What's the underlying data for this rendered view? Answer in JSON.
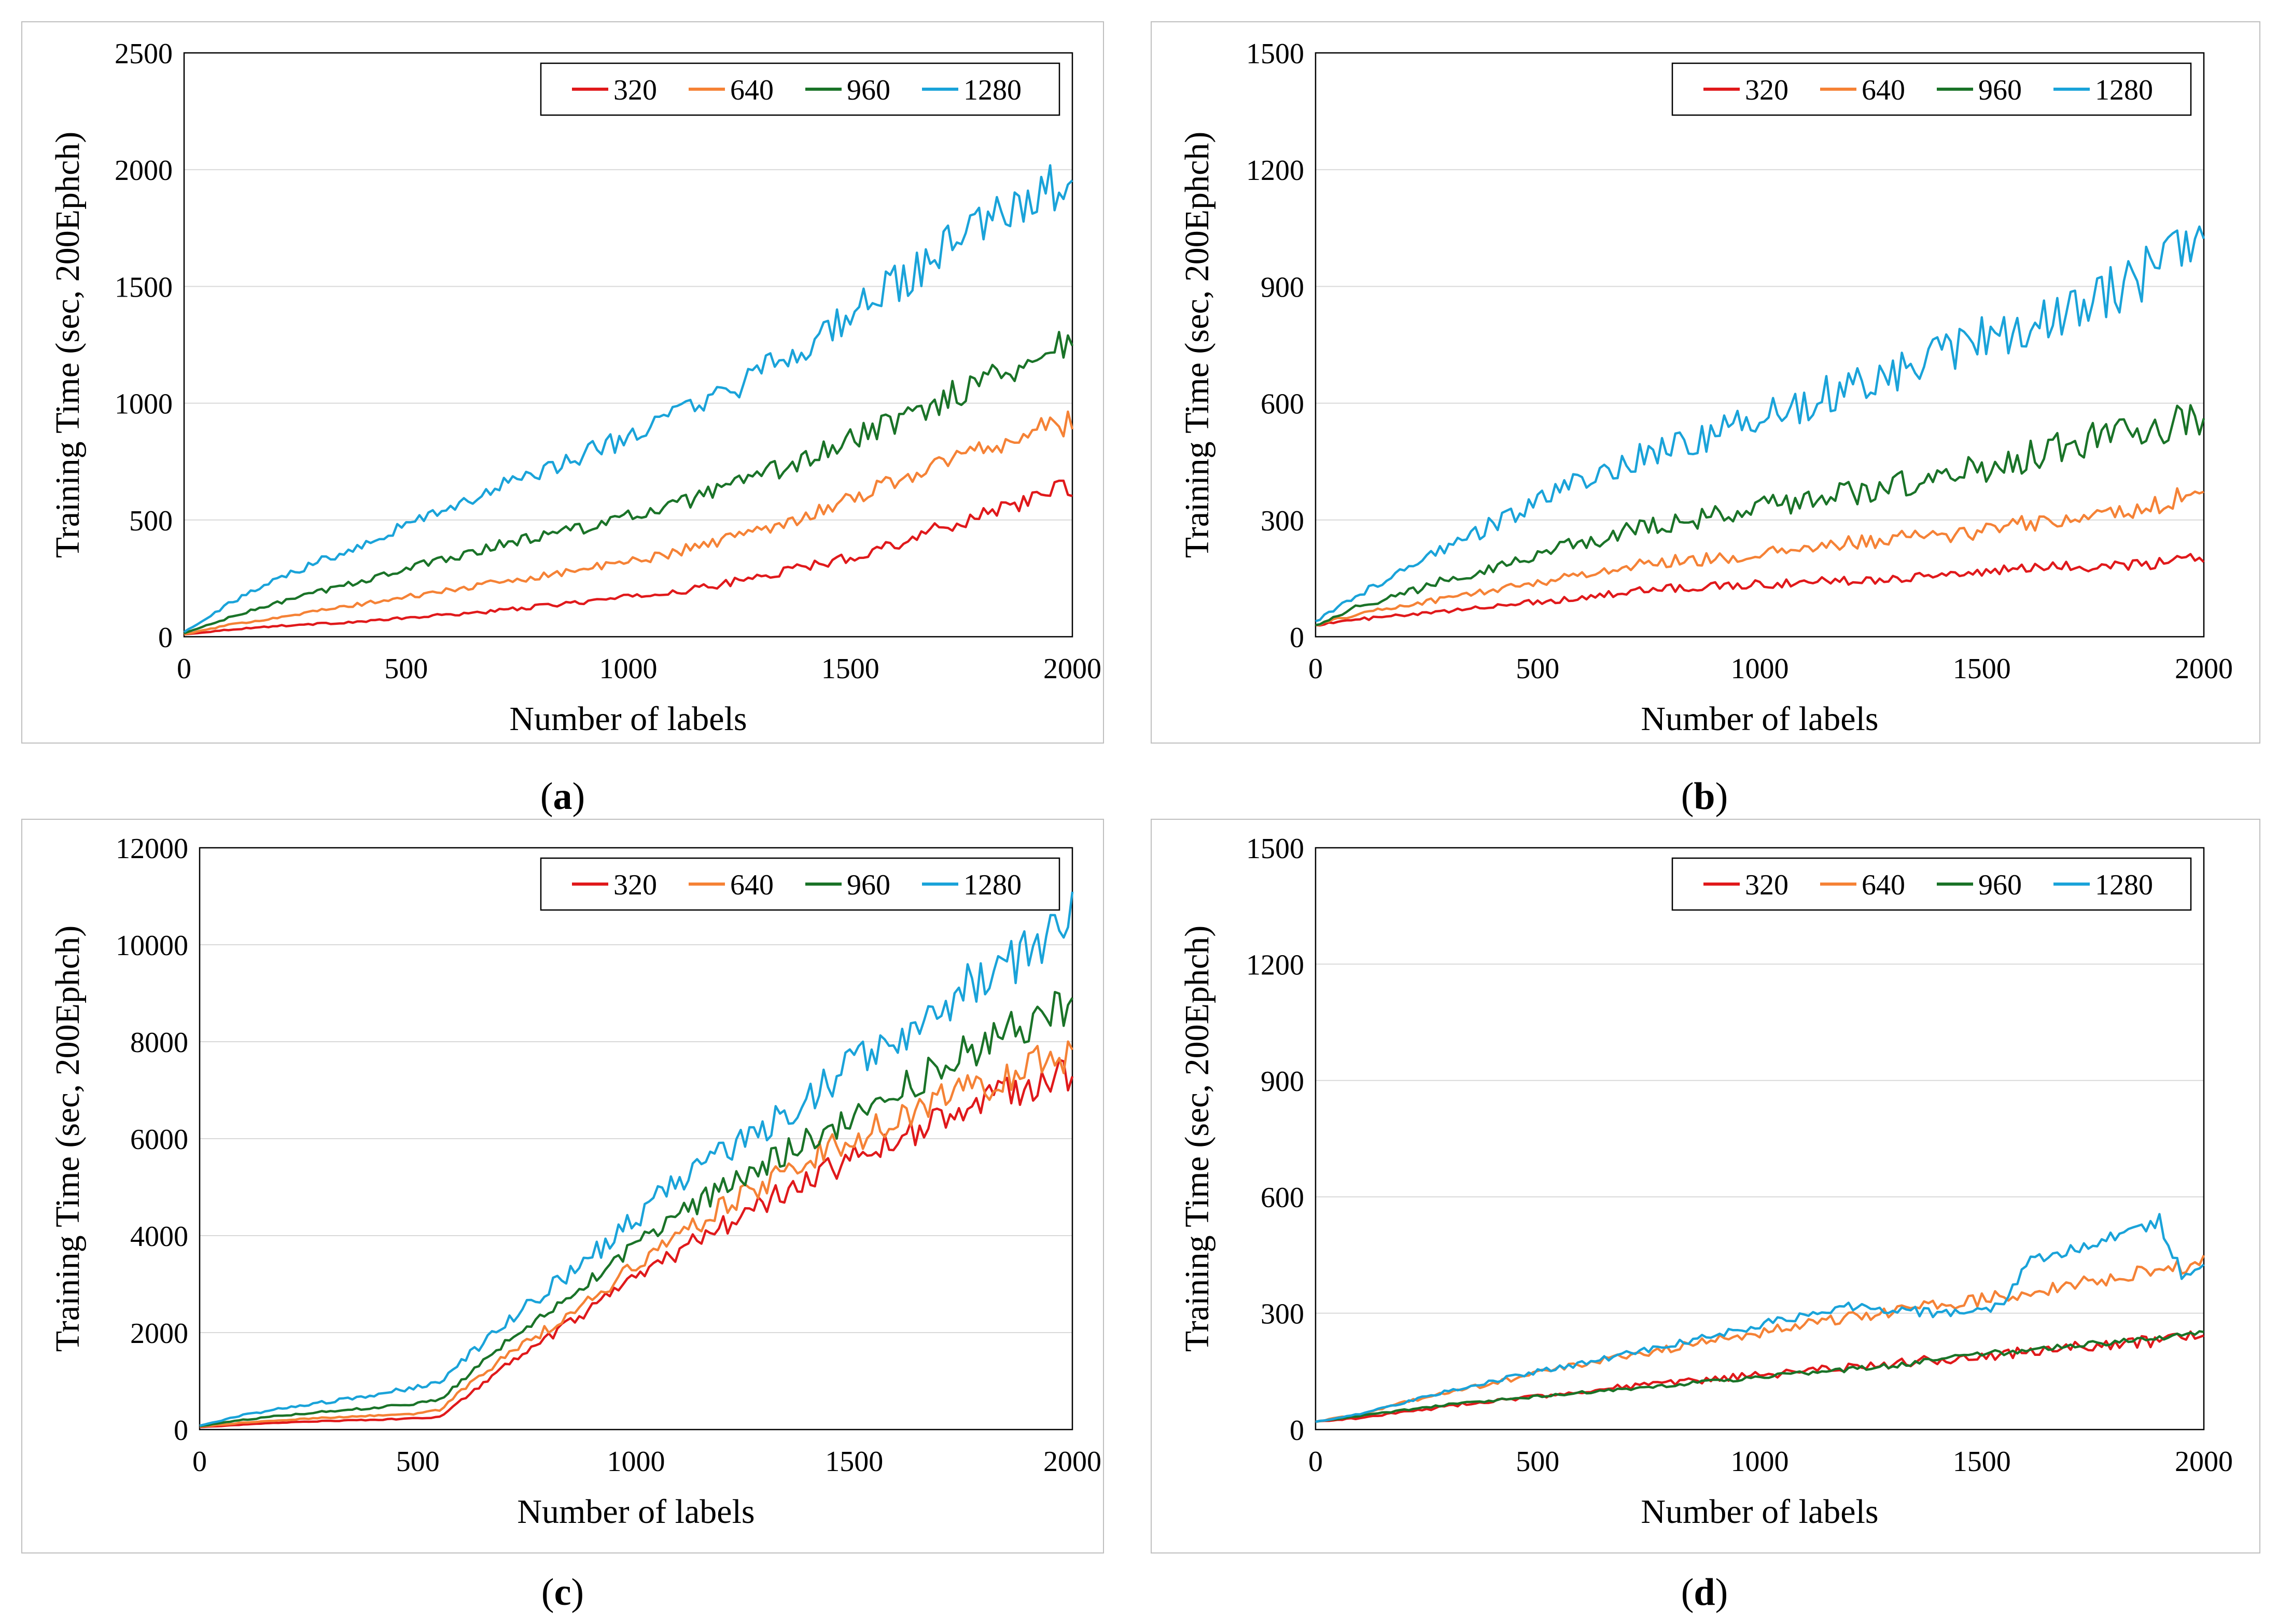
{
  "figure": {
    "panels": [
      "a",
      "b",
      "c",
      "d"
    ]
  },
  "colors": {
    "320": "#e0191b",
    "640": "#f58236",
    "960": "#1a7328",
    "1280": "#1aa3d9",
    "grid": "#d9d9d9",
    "frame": "#bfbfbf"
  },
  "chart_data": [
    {
      "id": "a",
      "caption_letter": "a",
      "caption_open": "(",
      "caption_close": ")",
      "type": "line",
      "xlabel": "Number of labels",
      "ylabel": "Training Time (sec, 200Ephch)",
      "xlim": [
        0,
        2000
      ],
      "ylim": [
        0,
        2500
      ],
      "xticks": [
        0,
        500,
        1000,
        1500,
        2000
      ],
      "yticks": [
        0,
        500,
        1000,
        1500,
        2000,
        2500
      ],
      "grid": true,
      "legend": "top-right",
      "x": [
        0,
        100,
        200,
        300,
        400,
        500,
        600,
        700,
        800,
        900,
        1000,
        1100,
        1200,
        1300,
        1400,
        1500,
        1600,
        1700,
        1800,
        1900,
        2000
      ],
      "series": [
        {
          "name": "320",
          "color_key": "320",
          "noise": 0.07,
          "values": [
            10,
            30,
            45,
            55,
            65,
            80,
            95,
            110,
            130,
            150,
            170,
            190,
            220,
            260,
            300,
            340,
            400,
            460,
            530,
            590,
            640
          ]
        },
        {
          "name": "640",
          "color_key": "640",
          "noise": 0.06,
          "values": [
            10,
            50,
            80,
            110,
            140,
            170,
            200,
            230,
            260,
            290,
            320,
            360,
            410,
            460,
            520,
            590,
            670,
            740,
            810,
            870,
            920
          ]
        },
        {
          "name": "960",
          "color_key": "960",
          "noise": 0.06,
          "values": [
            15,
            80,
            140,
            190,
            240,
            290,
            340,
            390,
            430,
            470,
            510,
            560,
            620,
            690,
            760,
            840,
            920,
            1010,
            1100,
            1180,
            1270
          ]
        },
        {
          "name": "1280",
          "color_key": "1280",
          "noise": 0.06,
          "values": [
            20,
            140,
            240,
            320,
            400,
            480,
            560,
            630,
            700,
            780,
            860,
            940,
            1020,
            1130,
            1250,
            1380,
            1500,
            1640,
            1760,
            1860,
            1960
          ]
        }
      ]
    },
    {
      "id": "b",
      "caption_letter": "b",
      "caption_open": "(",
      "caption_close": ")",
      "type": "line",
      "xlabel": "Number of labels",
      "ylabel": "Training Time (sec, 200Ephch)",
      "xlim": [
        0,
        2000
      ],
      "ylim": [
        0,
        1500
      ],
      "xticks": [
        0,
        500,
        1000,
        1500,
        2000
      ],
      "yticks": [
        0,
        300,
        600,
        900,
        1200,
        1500
      ],
      "grid": true,
      "legend": "top-right",
      "x": [
        0,
        100,
        200,
        300,
        400,
        500,
        600,
        700,
        800,
        900,
        1000,
        1100,
        1200,
        1300,
        1400,
        1500,
        1600,
        1700,
        1800,
        1900,
        2000
      ],
      "series": [
        {
          "name": "320",
          "color_key": "320",
          "noise": 0.08,
          "values": [
            30,
            45,
            55,
            65,
            80,
            90,
            100,
            115,
            125,
            130,
            135,
            140,
            145,
            150,
            160,
            165,
            175,
            180,
            185,
            190,
            200
          ]
        },
        {
          "name": "640",
          "color_key": "640",
          "noise": 0.08,
          "values": [
            30,
            60,
            80,
            100,
            120,
            140,
            160,
            180,
            195,
            200,
            210,
            225,
            240,
            250,
            260,
            270,
            290,
            300,
            320,
            340,
            380
          ]
        },
        {
          "name": "960",
          "color_key": "960",
          "noise": 0.09,
          "values": [
            30,
            80,
            110,
            150,
            180,
            210,
            240,
            270,
            290,
            310,
            330,
            350,
            370,
            390,
            410,
            430,
            460,
            490,
            520,
            540,
            560
          ]
        },
        {
          "name": "1280",
          "color_key": "1280",
          "noise": 0.08,
          "values": [
            40,
            110,
            170,
            230,
            290,
            350,
            400,
            450,
            490,
            520,
            560,
            600,
            640,
            680,
            720,
            760,
            800,
            850,
            900,
            950,
            1000
          ]
        }
      ]
    },
    {
      "id": "c",
      "caption_letter": "c",
      "caption_open": "(",
      "caption_close": ")",
      "type": "line",
      "xlabel": "Number of labels",
      "ylabel": "Training Time (sec, 200Ephch)",
      "xlim": [
        0,
        2000
      ],
      "ylim": [
        0,
        12000
      ],
      "xticks": [
        0,
        500,
        1000,
        1500,
        2000
      ],
      "yticks": [
        0,
        2000,
        4000,
        6000,
        8000,
        10000,
        12000
      ],
      "grid": true,
      "legend": "top-right",
      "x": [
        0,
        100,
        200,
        300,
        400,
        500,
        550,
        600,
        700,
        800,
        900,
        1000,
        1100,
        1200,
        1300,
        1400,
        1500,
        1600,
        1700,
        1800,
        1900,
        2000
      ],
      "series": [
        {
          "name": "320",
          "color_key": "320",
          "noise": 0.05,
          "values": [
            50,
            100,
            150,
            180,
            200,
            230,
            260,
            600,
            1300,
            1900,
            2500,
            3100,
            3700,
            4200,
            4700,
            5200,
            5600,
            6000,
            6400,
            6800,
            7100,
            7350
          ]
        },
        {
          "name": "640",
          "color_key": "640",
          "noise": 0.05,
          "values": [
            60,
            140,
            200,
            250,
            290,
            330,
            400,
            800,
            1500,
            2100,
            2700,
            3400,
            4000,
            4600,
            5100,
            5600,
            6000,
            6400,
            6800,
            7100,
            7500,
            7800
          ]
        },
        {
          "name": "960",
          "color_key": "960",
          "noise": 0.05,
          "values": [
            70,
            200,
            300,
            380,
            450,
            540,
            620,
            1000,
            1800,
            2500,
            3100,
            3800,
            4400,
            5000,
            5500,
            6000,
            6500,
            7000,
            7500,
            8000,
            8400,
            8750
          ]
        },
        {
          "name": "1280",
          "color_key": "1280",
          "noise": 0.06,
          "values": [
            80,
            300,
            450,
            580,
            720,
            880,
            1000,
            1400,
            2200,
            2900,
            3600,
            4400,
            5100,
            5700,
            6300,
            6900,
            7500,
            8100,
            8700,
            9300,
            9900,
            10700
          ]
        }
      ]
    },
    {
      "id": "d",
      "caption_letter": "d",
      "caption_open": "(",
      "caption_close": ")",
      "type": "line",
      "xlabel": "Number of labels",
      "ylabel": "Training Time (sec, 200Ephch)",
      "xlim": [
        0,
        2000
      ],
      "ylim": [
        0,
        1500
      ],
      "xticks": [
        0,
        500,
        1000,
        1500,
        2000
      ],
      "yticks": [
        0,
        300,
        600,
        900,
        1200,
        1500
      ],
      "grid": true,
      "legend": "top-right",
      "x": [
        0,
        100,
        200,
        300,
        400,
        500,
        600,
        700,
        800,
        900,
        1000,
        1100,
        1200,
        1300,
        1400,
        1500,
        1550,
        1600,
        1700,
        1800,
        1900,
        1950,
        2000
      ],
      "series": [
        {
          "name": "320",
          "color_key": "320",
          "noise": 0.07,
          "values": [
            20,
            30,
            45,
            60,
            75,
            85,
            100,
            110,
            120,
            130,
            140,
            150,
            160,
            170,
            180,
            190,
            195,
            200,
            210,
            220,
            230,
            235,
            240
          ]
        },
        {
          "name": "640",
          "color_key": "640",
          "noise": 0.05,
          "values": [
            20,
            40,
            70,
            95,
            120,
            145,
            170,
            190,
            210,
            230,
            250,
            270,
            290,
            305,
            320,
            335,
            345,
            355,
            375,
            395,
            410,
            420,
            440
          ]
        },
        {
          "name": "960",
          "color_key": "960",
          "noise": 0.04,
          "values": [
            20,
            35,
            50,
            65,
            75,
            85,
            95,
            105,
            115,
            125,
            135,
            145,
            155,
            165,
            180,
            195,
            200,
            205,
            215,
            225,
            235,
            240,
            245
          ]
        },
        {
          "name": "1280",
          "color_key": "1280",
          "noise": 0.04,
          "values": [
            20,
            40,
            70,
            100,
            125,
            150,
            170,
            195,
            220,
            245,
            270,
            295,
            320,
            310,
            300,
            310,
            320,
            430,
            460,
            500,
            535,
            400,
            410
          ]
        }
      ]
    }
  ]
}
